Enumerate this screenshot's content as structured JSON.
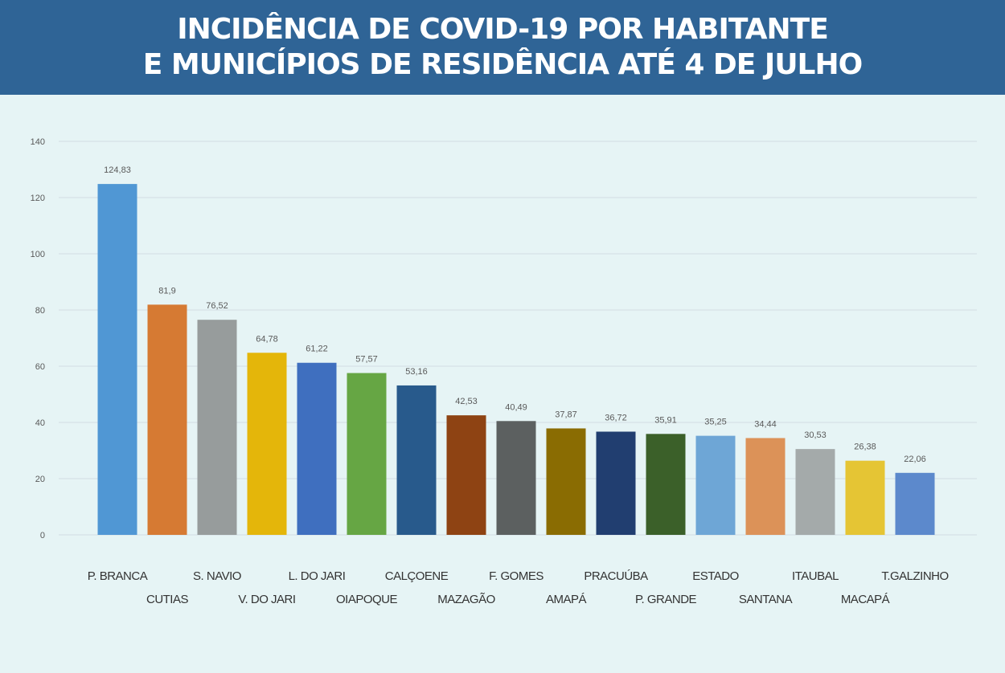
{
  "header": {
    "title_line1": "INCIDÊNCIA DE COVID-19 POR HABITANTE",
    "title_line2": "E MUNICÍPIOS DE RESIDÊNCIA ATÉ 4 DE JULHO"
  },
  "colors": {
    "header_bg": "#2f6496",
    "page_bg": "#e6f4f5",
    "grid": "#d3dde2"
  },
  "chart_data": {
    "type": "bar",
    "title": "INCIDÊNCIA DE COVID-19 POR HABITANTE E MUNICÍPIOS DE RESIDÊNCIA ATÉ 4 DE JULHO",
    "xlabel": "",
    "ylabel": "",
    "ylim": [
      0,
      140
    ],
    "yticks": [
      0,
      20,
      40,
      60,
      80,
      100,
      120,
      140
    ],
    "grid": true,
    "legend": "none",
    "categories": [
      "P. BRANCA",
      "CUTIAS",
      "S. NAVIO",
      "V. DO JARI",
      "L. DO JARI",
      "OIAPOQUE",
      "CALÇOENE",
      "MAZAGÃO",
      "F. GOMES",
      "AMAPÁ",
      "PRACUÚBA",
      "P. GRANDE",
      "ESTADO",
      "SANTANA",
      "ITAUBAL",
      "MACAPÁ",
      "T.GALZINHO"
    ],
    "values": [
      124.83,
      81.9,
      76.52,
      64.78,
      61.22,
      57.57,
      53.16,
      42.53,
      40.49,
      37.87,
      36.72,
      35.91,
      35.25,
      34.44,
      30.53,
      26.38,
      22.06
    ],
    "value_labels": [
      "124,83",
      "81,9",
      "76,52",
      "64,78",
      "61,22",
      "57,57",
      "53,16",
      "42,53",
      "40,49",
      "37,87",
      "36,72",
      "35,91",
      "35,25",
      "34,44",
      "30,53",
      "26,38",
      "22,06"
    ],
    "bar_colors": [
      "#5097d4",
      "#d67a33",
      "#979c9c",
      "#e4b60a",
      "#3f6fbf",
      "#66a644",
      "#285a8c",
      "#8e4313",
      "#5c6060",
      "#8a6c02",
      "#213e70",
      "#3b6029",
      "#6ea6d6",
      "#dc9258",
      "#a4aaaa",
      "#e5c534",
      "#5c89cc"
    ]
  }
}
